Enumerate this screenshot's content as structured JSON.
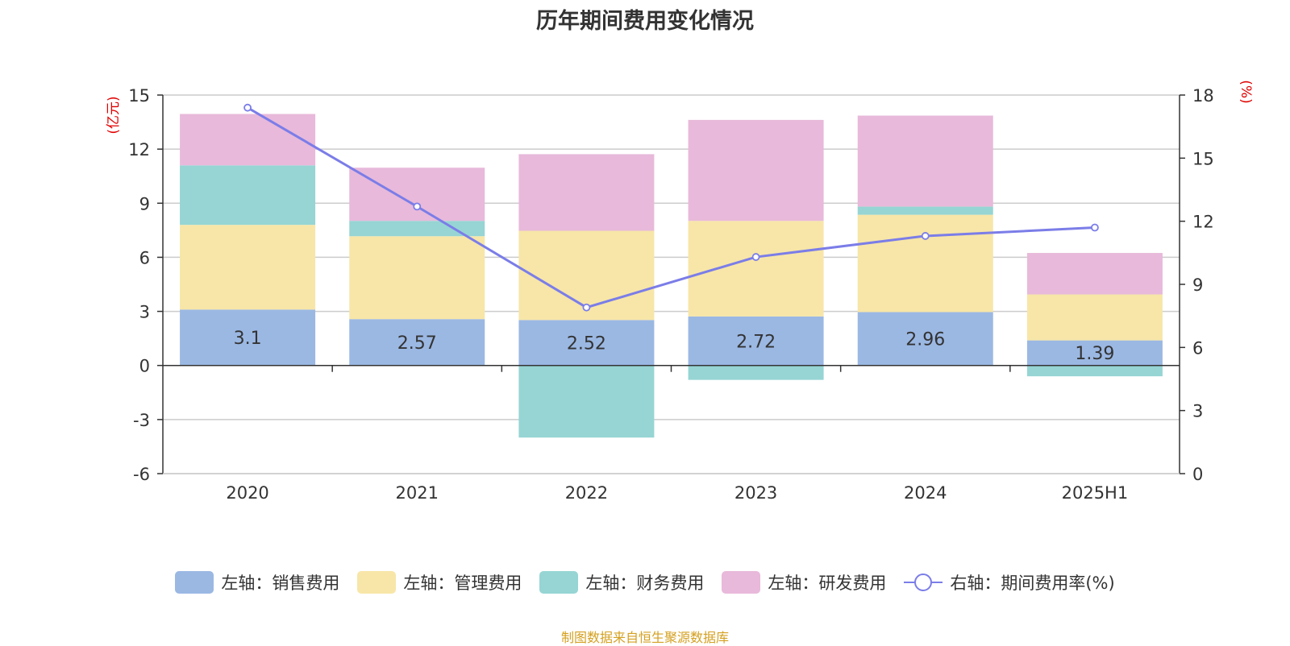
{
  "chart_data": {
    "type": "bar",
    "title": "历年期间费用变化情况",
    "categories": [
      "2020",
      "2021",
      "2022",
      "2023",
      "2024",
      "2025H1"
    ],
    "y_left": {
      "label": "(亿元)",
      "min": -6,
      "max": 15,
      "ticks": [
        "-6",
        "-3",
        "0",
        "3",
        "6",
        "9",
        "12",
        "15"
      ]
    },
    "y_right": {
      "label": "(%)",
      "min": 0,
      "max": 18,
      "ticks": [
        "0",
        "3",
        "6",
        "9",
        "12",
        "15",
        "18"
      ]
    },
    "series": [
      {
        "name": "左轴：销售费用",
        "type": "bar",
        "axis": "left",
        "color": "#9bb8e3",
        "values": [
          3.1,
          2.57,
          2.52,
          2.72,
          2.96,
          1.39
        ],
        "labels": [
          "3.1",
          "2.57",
          "2.52",
          "2.72",
          "2.96",
          "1.39"
        ]
      },
      {
        "name": "左轴：管理费用",
        "type": "bar",
        "axis": "left",
        "color": "#f7e6a8",
        "values": [
          4.7,
          4.6,
          4.95,
          5.3,
          5.4,
          2.55
        ]
      },
      {
        "name": "左轴：财务费用",
        "type": "bar",
        "axis": "left",
        "color": "#96d5d4",
        "values": [
          3.3,
          0.85,
          -4.0,
          -0.8,
          0.45,
          -0.6
        ]
      },
      {
        "name": "左轴：研发费用",
        "type": "bar",
        "axis": "left",
        "color": "#e8b9da",
        "values": [
          2.85,
          2.95,
          4.25,
          5.6,
          5.05,
          2.3
        ]
      },
      {
        "name": "右轴：期间费用率(%)",
        "type": "line",
        "axis": "right",
        "color": "#7b7de8",
        "values": [
          17.4,
          12.7,
          7.9,
          10.3,
          11.3,
          11.7
        ]
      }
    ],
    "grid": true,
    "legend_position": "bottom"
  },
  "source": "制图数据来自恒生聚源数据库"
}
